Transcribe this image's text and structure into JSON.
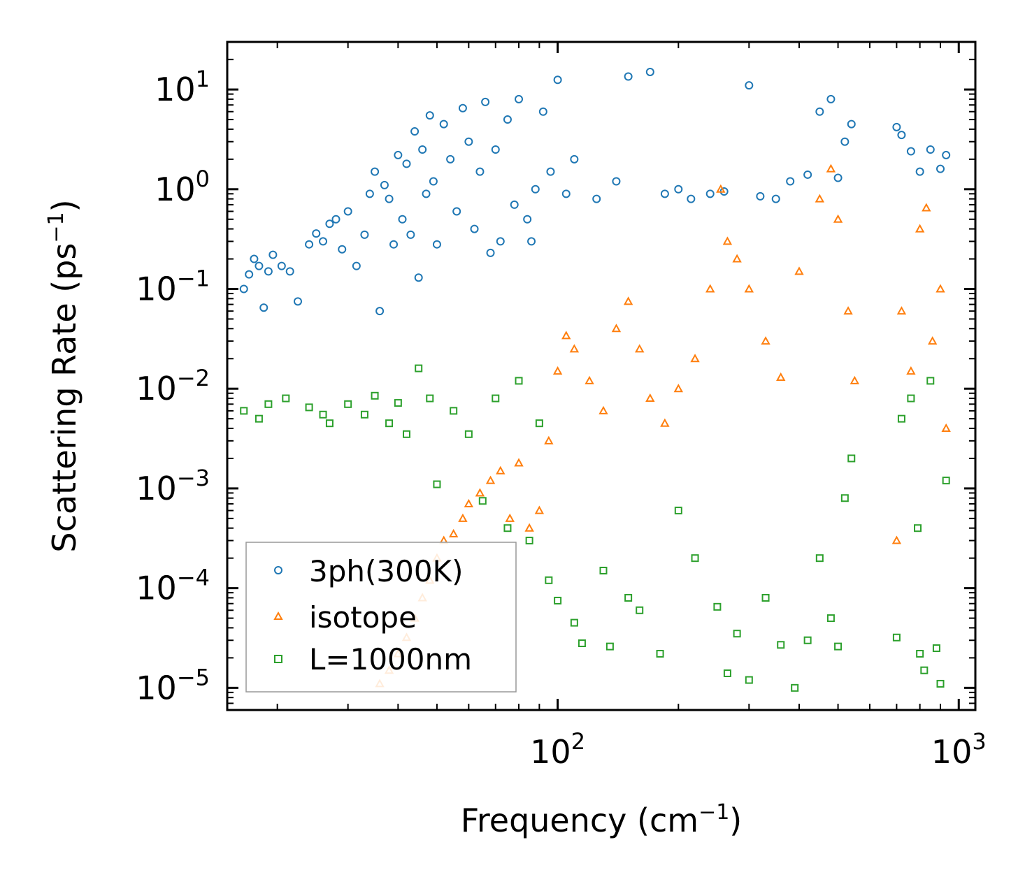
{
  "chart_data": {
    "type": "scatter",
    "xscale": "log",
    "yscale": "log",
    "xlim": [
      15,
      1100
    ],
    "ylim": [
      6e-06,
      30
    ],
    "xlabel": {
      "text": "Frequency (cm",
      "sup": "−1",
      "close": ")"
    },
    "ylabel": {
      "text": "Scattering Rate (ps",
      "sup": "−1",
      "close": ")"
    },
    "xticks": [
      {
        "value": 100,
        "base": "10",
        "exp": "2"
      },
      {
        "value": 1000,
        "base": "10",
        "exp": "3"
      }
    ],
    "yticks": [
      {
        "value": 10,
        "base": "10",
        "exp": "1"
      },
      {
        "value": 1,
        "base": "10",
        "exp": "0"
      },
      {
        "value": 0.1,
        "base": "10",
        "exp": "−1"
      },
      {
        "value": 0.01,
        "base": "10",
        "exp": "−2"
      },
      {
        "value": 0.001,
        "base": "10",
        "exp": "−3"
      },
      {
        "value": 0.0001,
        "base": "10",
        "exp": "−4"
      },
      {
        "value": 1e-05,
        "base": "10",
        "exp": "−5"
      }
    ],
    "legend_position": "lower-left",
    "series": [
      {
        "name": "3ph(300K)",
        "marker": "circle",
        "color": "#1f77b4",
        "points": [
          [
            16.5,
            0.1
          ],
          [
            17,
            0.14
          ],
          [
            17.5,
            0.2
          ],
          [
            18,
            0.17
          ],
          [
            18.5,
            0.065
          ],
          [
            19,
            0.15
          ],
          [
            19.5,
            0.22
          ],
          [
            20.5,
            0.17
          ],
          [
            21.5,
            0.15
          ],
          [
            22.5,
            0.075
          ],
          [
            24,
            0.28
          ],
          [
            25,
            0.36
          ],
          [
            26,
            0.3
          ],
          [
            27,
            0.45
          ],
          [
            28,
            0.5
          ],
          [
            29,
            0.25
          ],
          [
            30,
            0.6
          ],
          [
            31.5,
            0.17
          ],
          [
            33,
            0.35
          ],
          [
            34,
            0.9
          ],
          [
            35,
            1.5
          ],
          [
            36,
            0.06
          ],
          [
            37,
            1.1
          ],
          [
            38,
            0.8
          ],
          [
            39,
            0.28
          ],
          [
            40,
            2.2
          ],
          [
            41,
            0.5
          ],
          [
            42,
            1.8
          ],
          [
            43,
            0.35
          ],
          [
            44,
            3.8
          ],
          [
            45,
            0.13
          ],
          [
            46,
            2.5
          ],
          [
            47,
            0.9
          ],
          [
            48,
            5.5
          ],
          [
            49,
            1.2
          ],
          [
            50,
            0.28
          ],
          [
            52,
            4.5
          ],
          [
            54,
            2.0
          ],
          [
            56,
            0.6
          ],
          [
            58,
            6.5
          ],
          [
            60,
            3.0
          ],
          [
            62,
            0.4
          ],
          [
            64,
            1.5
          ],
          [
            66,
            7.5
          ],
          [
            68,
            0.23
          ],
          [
            70,
            2.5
          ],
          [
            72,
            0.3
          ],
          [
            75,
            5.0
          ],
          [
            78,
            0.7
          ],
          [
            80,
            8.0
          ],
          [
            84,
            0.5
          ],
          [
            86,
            0.3
          ],
          [
            88,
            1.0
          ],
          [
            92,
            6.0
          ],
          [
            96,
            1.5
          ],
          [
            100,
            12.5
          ],
          [
            105,
            0.9
          ],
          [
            110,
            2.0
          ],
          [
            125,
            0.8
          ],
          [
            140,
            1.2
          ],
          [
            150,
            13.5
          ],
          [
            170,
            15.0
          ],
          [
            185,
            0.9
          ],
          [
            200,
            1.0
          ],
          [
            215,
            0.8
          ],
          [
            240,
            0.9
          ],
          [
            260,
            0.95
          ],
          [
            300,
            11.0
          ],
          [
            320,
            0.85
          ],
          [
            350,
            0.8
          ],
          [
            380,
            1.2
          ],
          [
            420,
            1.4
          ],
          [
            450,
            6.0
          ],
          [
            480,
            8.0
          ],
          [
            500,
            1.3
          ],
          [
            520,
            3.0
          ],
          [
            540,
            4.5
          ],
          [
            700,
            4.2
          ],
          [
            720,
            3.5
          ],
          [
            760,
            2.4
          ],
          [
            800,
            1.5
          ],
          [
            850,
            2.5
          ],
          [
            900,
            1.6
          ],
          [
            930,
            2.2
          ]
        ]
      },
      {
        "name": "isotope",
        "marker": "triangle",
        "color": "#ff7f0e",
        "points": [
          [
            36,
            1.1e-05
          ],
          [
            38,
            1.5e-05
          ],
          [
            40,
            2.2e-05
          ],
          [
            42,
            3.2e-05
          ],
          [
            44,
            5e-05
          ],
          [
            46,
            8e-05
          ],
          [
            48,
            0.00012
          ],
          [
            50,
            0.0002
          ],
          [
            52,
            0.0003
          ],
          [
            55,
            0.00035
          ],
          [
            58,
            0.0005
          ],
          [
            60,
            0.0007
          ],
          [
            64,
            0.0009
          ],
          [
            68,
            0.0012
          ],
          [
            72,
            0.0015
          ],
          [
            76,
            0.0005
          ],
          [
            80,
            0.0018
          ],
          [
            85,
            0.0004
          ],
          [
            90,
            0.0006
          ],
          [
            95,
            0.003
          ],
          [
            100,
            0.015
          ],
          [
            105,
            0.034
          ],
          [
            110,
            0.025
          ],
          [
            120,
            0.012
          ],
          [
            130,
            0.006
          ],
          [
            140,
            0.04
          ],
          [
            150,
            0.075
          ],
          [
            160,
            0.025
          ],
          [
            170,
            0.008
          ],
          [
            185,
            0.0045
          ],
          [
            200,
            0.01
          ],
          [
            220,
            0.02
          ],
          [
            240,
            0.1
          ],
          [
            255,
            1.0
          ],
          [
            265,
            0.3
          ],
          [
            280,
            0.2
          ],
          [
            300,
            0.1
          ],
          [
            330,
            0.03
          ],
          [
            360,
            0.013
          ],
          [
            400,
            0.15
          ],
          [
            450,
            0.8
          ],
          [
            480,
            1.6
          ],
          [
            500,
            0.5
          ],
          [
            530,
            0.06
          ],
          [
            550,
            0.012
          ],
          [
            700,
            0.0003
          ],
          [
            720,
            0.06
          ],
          [
            760,
            0.015
          ],
          [
            800,
            0.4
          ],
          [
            830,
            0.65
          ],
          [
            860,
            0.03
          ],
          [
            900,
            0.1
          ],
          [
            930,
            0.004
          ]
        ]
      },
      {
        "name": "L=1000nm",
        "marker": "square",
        "color": "#2ca02c",
        "points": [
          [
            16.5,
            0.006
          ],
          [
            18,
            0.005
          ],
          [
            19,
            0.007
          ],
          [
            21,
            0.008
          ],
          [
            24,
            0.0065
          ],
          [
            26,
            0.0055
          ],
          [
            27,
            0.0045
          ],
          [
            30,
            0.007
          ],
          [
            33,
            0.0055
          ],
          [
            35,
            0.0085
          ],
          [
            38,
            0.0045
          ],
          [
            40,
            0.0072
          ],
          [
            42,
            0.0035
          ],
          [
            45,
            0.016
          ],
          [
            48,
            0.008
          ],
          [
            50,
            0.0011
          ],
          [
            55,
            0.006
          ],
          [
            60,
            0.0035
          ],
          [
            65,
            0.00075
          ],
          [
            70,
            0.008
          ],
          [
            75,
            0.0004
          ],
          [
            80,
            0.012
          ],
          [
            85,
            0.0003
          ],
          [
            90,
            0.0045
          ],
          [
            95,
            0.00012
          ],
          [
            100,
            7.5e-05
          ],
          [
            110,
            4.5e-05
          ],
          [
            115,
            2.8e-05
          ],
          [
            130,
            0.00015
          ],
          [
            135,
            2.6e-05
          ],
          [
            150,
            8e-05
          ],
          [
            160,
            6e-05
          ],
          [
            180,
            2.2e-05
          ],
          [
            200,
            0.0006
          ],
          [
            220,
            0.0002
          ],
          [
            250,
            6.5e-05
          ],
          [
            265,
            1.4e-05
          ],
          [
            280,
            3.5e-05
          ],
          [
            300,
            1.2e-05
          ],
          [
            330,
            8e-05
          ],
          [
            360,
            2.7e-05
          ],
          [
            390,
            1e-05
          ],
          [
            420,
            3e-05
          ],
          [
            450,
            0.0002
          ],
          [
            480,
            5e-05
          ],
          [
            500,
            2.6e-05
          ],
          [
            520,
            0.0008
          ],
          [
            540,
            0.002
          ],
          [
            700,
            3.2e-05
          ],
          [
            720,
            0.005
          ],
          [
            760,
            0.008
          ],
          [
            790,
            0.0004
          ],
          [
            800,
            2.2e-05
          ],
          [
            820,
            1.5e-05
          ],
          [
            850,
            0.012
          ],
          [
            880,
            2.5e-05
          ],
          [
            900,
            1.1e-05
          ],
          [
            930,
            0.0012
          ]
        ]
      }
    ]
  }
}
